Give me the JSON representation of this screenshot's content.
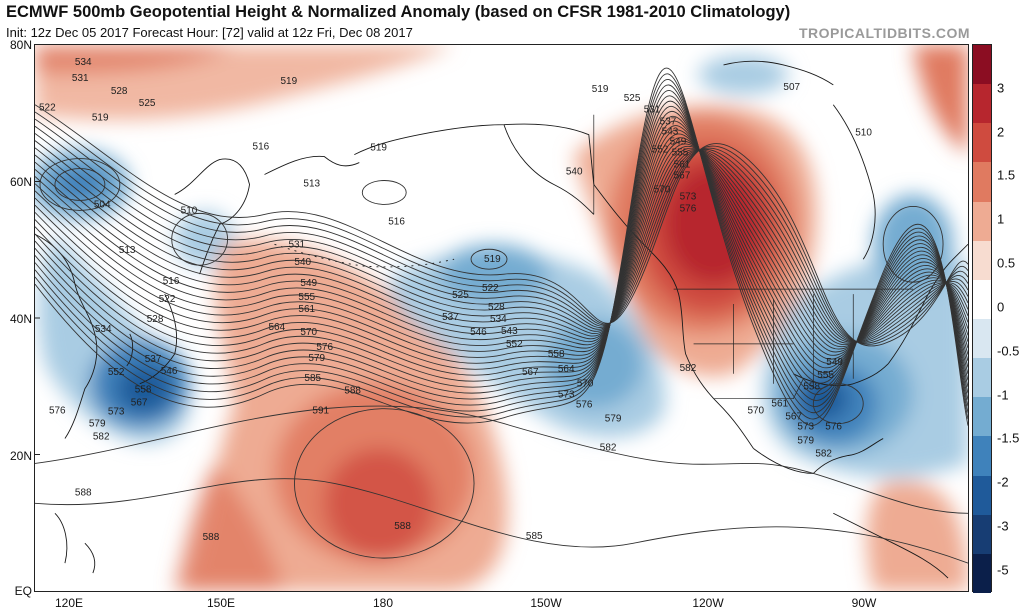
{
  "header": {
    "title": "ECMWF 500mb Geopotential Height & Normalized Anomaly (based on CFSR 1981-2010 Climatology)",
    "subtitle": "Init: 12z Dec 05 2017   Forecast Hour: [72]   valid at 12z Fri, Dec 08 2017",
    "brand": "TROPICALTIDBITS.COM"
  },
  "axes": {
    "lat_labels": [
      "80N",
      "60N",
      "40N",
      "20N",
      "EQ"
    ],
    "lon_labels": [
      "120E",
      "150E",
      "180",
      "150W",
      "120W",
      "90W"
    ]
  },
  "colorbar": {
    "labels": [
      "3",
      "2",
      "1.5",
      "1",
      "0.5",
      "0",
      "-0.5",
      "-1",
      "-1.5",
      "-2",
      "-3",
      "-5"
    ],
    "colors": [
      "#8b0d22",
      "#b7262e",
      "#cf4b3f",
      "#e07a60",
      "#eeab93",
      "#f7dcd0",
      "#ffffff",
      "#d9e7f1",
      "#a9cce3",
      "#74acd1",
      "#3f82bb",
      "#1f5a9a",
      "#173d73",
      "#0b1f4a"
    ]
  },
  "contour_labels": [
    {
      "text": "534"
    },
    {
      "text": "531"
    },
    {
      "text": "528"
    },
    {
      "text": "525"
    },
    {
      "text": "522"
    },
    {
      "text": "519"
    },
    {
      "text": "519"
    },
    {
      "text": "516"
    },
    {
      "text": "519"
    },
    {
      "text": "513"
    },
    {
      "text": "510"
    },
    {
      "text": "504"
    },
    {
      "text": "513"
    },
    {
      "text": "516"
    },
    {
      "text": "522"
    },
    {
      "text": "528"
    },
    {
      "text": "534"
    },
    {
      "text": "537"
    },
    {
      "text": "552"
    },
    {
      "text": "558"
    },
    {
      "text": "567"
    },
    {
      "text": "546"
    },
    {
      "text": "576"
    },
    {
      "text": "573"
    },
    {
      "text": "579"
    },
    {
      "text": "582"
    },
    {
      "text": "588"
    },
    {
      "text": "516"
    },
    {
      "text": "531"
    },
    {
      "text": "540"
    },
    {
      "text": "549"
    },
    {
      "text": "555"
    },
    {
      "text": "561"
    },
    {
      "text": "564"
    },
    {
      "text": "570"
    },
    {
      "text": "576"
    },
    {
      "text": "579"
    },
    {
      "text": "585"
    },
    {
      "text": "588"
    },
    {
      "text": "591"
    },
    {
      "text": "588"
    },
    {
      "text": "588"
    },
    {
      "text": "585"
    },
    {
      "text": "519"
    },
    {
      "text": "525"
    },
    {
      "text": "522"
    },
    {
      "text": "528"
    },
    {
      "text": "537"
    },
    {
      "text": "534"
    },
    {
      "text": "546"
    },
    {
      "text": "543"
    },
    {
      "text": "552"
    },
    {
      "text": "558"
    },
    {
      "text": "567"
    },
    {
      "text": "564"
    },
    {
      "text": "570"
    },
    {
      "text": "573"
    },
    {
      "text": "576"
    },
    {
      "text": "579"
    },
    {
      "text": "582"
    },
    {
      "text": "519"
    },
    {
      "text": "525"
    },
    {
      "text": "531"
    },
    {
      "text": "537"
    },
    {
      "text": "543"
    },
    {
      "text": "549"
    },
    {
      "text": "552"
    },
    {
      "text": "555"
    },
    {
      "text": "561"
    },
    {
      "text": "567"
    },
    {
      "text": "540"
    },
    {
      "text": "570"
    },
    {
      "text": "573"
    },
    {
      "text": "576"
    },
    {
      "text": "582"
    },
    {
      "text": "507"
    },
    {
      "text": "510"
    },
    {
      "text": "549"
    },
    {
      "text": "555"
    },
    {
      "text": "558"
    },
    {
      "text": "561"
    },
    {
      "text": "570"
    },
    {
      "text": "567"
    },
    {
      "text": "573"
    },
    {
      "text": "576"
    },
    {
      "text": "579"
    },
    {
      "text": "582"
    }
  ]
}
